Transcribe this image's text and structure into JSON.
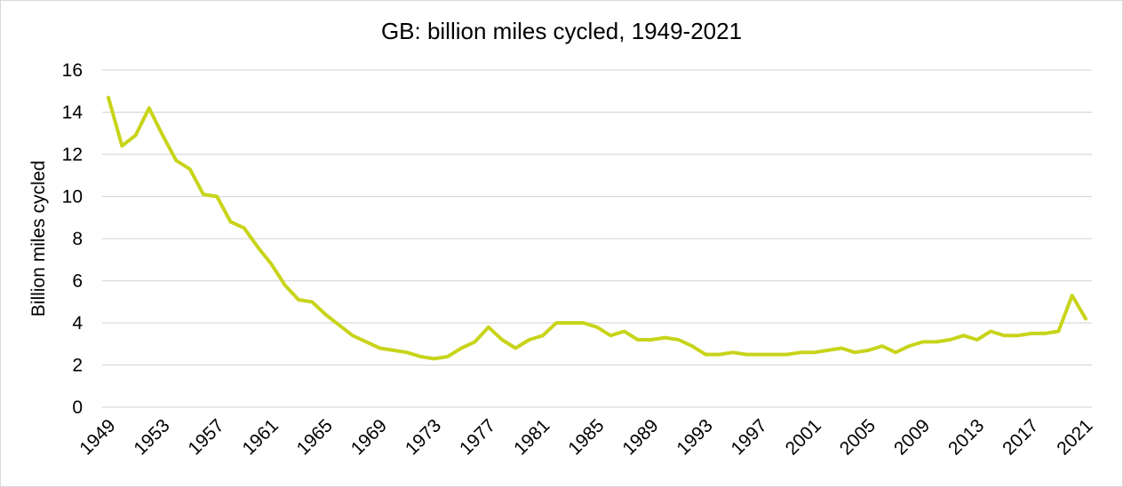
{
  "chart_data": {
    "type": "line",
    "title": "GB: billion miles cycled, 1949-2021",
    "xlabel": "",
    "ylabel": "Billion miles cycled",
    "ylim": [
      0,
      16
    ],
    "yticks": [
      0,
      2,
      4,
      6,
      8,
      10,
      12,
      14,
      16
    ],
    "xtick_labels": [
      "1949",
      "1953",
      "1957",
      "1961",
      "1965",
      "1969",
      "1973",
      "1977",
      "1981",
      "1985",
      "1989",
      "1993",
      "1997",
      "2001",
      "2005",
      "2009",
      "2013",
      "2017",
      "2021"
    ],
    "grid": true,
    "legend": "none",
    "series": [
      {
        "name": "Billion miles cycled",
        "color": "#c8d41a",
        "x": [
          1949,
          1950,
          1951,
          1952,
          1953,
          1954,
          1955,
          1956,
          1957,
          1958,
          1959,
          1960,
          1961,
          1962,
          1963,
          1964,
          1965,
          1966,
          1967,
          1968,
          1969,
          1970,
          1971,
          1972,
          1973,
          1974,
          1975,
          1976,
          1977,
          1978,
          1979,
          1980,
          1981,
          1982,
          1983,
          1984,
          1985,
          1986,
          1987,
          1988,
          1989,
          1990,
          1991,
          1992,
          1993,
          1994,
          1995,
          1996,
          1997,
          1998,
          1999,
          2000,
          2001,
          2002,
          2003,
          2004,
          2005,
          2006,
          2007,
          2008,
          2009,
          2010,
          2011,
          2012,
          2013,
          2014,
          2015,
          2016,
          2017,
          2018,
          2019,
          2020,
          2021
        ],
        "values": [
          14.7,
          12.4,
          12.9,
          14.2,
          12.9,
          11.7,
          11.3,
          10.1,
          10.0,
          8.8,
          8.5,
          7.6,
          6.8,
          5.8,
          5.1,
          5.0,
          4.4,
          3.9,
          3.4,
          3.1,
          2.8,
          2.7,
          2.6,
          2.4,
          2.3,
          2.4,
          2.8,
          3.1,
          3.8,
          3.2,
          2.8,
          3.2,
          3.4,
          4.0,
          4.0,
          4.0,
          3.8,
          3.4,
          3.6,
          3.2,
          3.2,
          3.3,
          3.2,
          2.9,
          2.5,
          2.5,
          2.6,
          2.5,
          2.5,
          2.5,
          2.5,
          2.6,
          2.6,
          2.7,
          2.8,
          2.6,
          2.7,
          2.9,
          2.6,
          2.9,
          3.1,
          3.1,
          3.2,
          3.4,
          3.2,
          3.6,
          3.4,
          3.4,
          3.5,
          3.5,
          3.6,
          5.3,
          4.2
        ]
      }
    ]
  }
}
